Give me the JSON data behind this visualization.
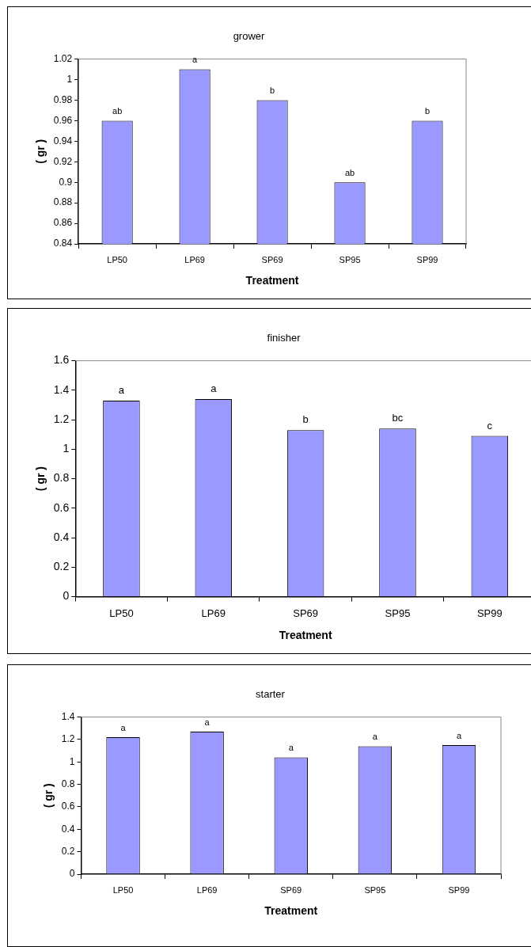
{
  "chart_data": [
    {
      "type": "bar",
      "title": "grower",
      "xlabel": "Treatment",
      "ylabel": "( gr )",
      "categories": [
        "LP50",
        "LP69",
        "SP69",
        "SP95",
        "SP99"
      ],
      "values": [
        0.96,
        1.01,
        0.98,
        0.9,
        0.96
      ],
      "color": "#9999ff",
      "ylim": [
        0.84,
        1.02
      ],
      "yticks": [
        0.84,
        0.86,
        0.88,
        0.9,
        0.92,
        0.94,
        0.96,
        0.98,
        1,
        1.02
      ],
      "grid": false,
      "legend": false,
      "annotations": [
        {
          "text": "ab",
          "x": "LP50",
          "y": 0.96
        },
        {
          "text": "a",
          "x": "LP69",
          "y": 1.01
        },
        {
          "text": "b",
          "x": "SP69",
          "y": 0.98
        },
        {
          "text": "ab",
          "x": "SP95",
          "y": 0.9
        },
        {
          "text": "b",
          "x": "SP99",
          "y": 0.96
        }
      ]
    },
    {
      "type": "bar",
      "title": "finisher",
      "xlabel": "Treatment",
      "ylabel": "( gr )",
      "categories": [
        "LP50",
        "LP69",
        "SP69",
        "SP95",
        "SP99"
      ],
      "values": [
        1.33,
        1.34,
        1.13,
        1.14,
        1.09
      ],
      "color": "#9999ff",
      "ylim": [
        0,
        1.6
      ],
      "yticks": [
        0,
        0.2,
        0.4,
        0.6,
        0.8,
        1,
        1.2,
        1.4,
        1.6
      ],
      "grid": false,
      "legend": false,
      "annotations": [
        {
          "text": "a",
          "x": "LP50",
          "y": 1.33
        },
        {
          "text": "a",
          "x": "LP69",
          "y": 1.34
        },
        {
          "text": "b",
          "x": "SP69",
          "y": 1.13
        },
        {
          "text": "bc",
          "x": "SP95",
          "y": 1.14
        },
        {
          "text": "c",
          "x": "SP99",
          "y": 1.09
        }
      ]
    },
    {
      "type": "bar",
      "title": "starter",
      "xlabel": "Treatment",
      "ylabel": "( gr )",
      "categories": [
        "LP50",
        "LP69",
        "SP69",
        "SP95",
        "SP99"
      ],
      "values": [
        1.22,
        1.27,
        1.04,
        1.14,
        1.15
      ],
      "color": "#9999ff",
      "ylim": [
        0,
        1.4
      ],
      "yticks": [
        0,
        0.2,
        0.4,
        0.6,
        0.8,
        1,
        1.2,
        1.4
      ],
      "grid": false,
      "legend": false,
      "annotations": [
        {
          "text": "a",
          "x": "LP50",
          "y": 1.22
        },
        {
          "text": "a",
          "x": "LP69",
          "y": 1.27
        },
        {
          "text": "a",
          "x": "SP69",
          "y": 1.04
        },
        {
          "text": "a",
          "x": "SP95",
          "y": 1.14
        },
        {
          "text": "a",
          "x": "SP99",
          "y": 1.15
        }
      ]
    }
  ]
}
